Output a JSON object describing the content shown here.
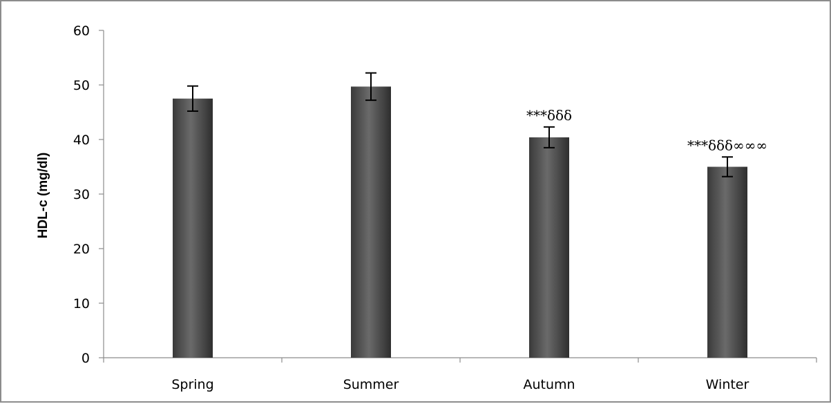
{
  "chart_data": {
    "type": "bar",
    "title": "",
    "xlabel": "",
    "ylabel": "HDL-c (mg/dl)",
    "ylim": [
      0,
      60
    ],
    "yticks": [
      0,
      10,
      20,
      30,
      40,
      50,
      60
    ],
    "categories": [
      "Spring",
      "Summer",
      "Autumn",
      "Winter"
    ],
    "values": [
      47.5,
      49.7,
      40.4,
      35.0
    ],
    "error": [
      2.3,
      2.5,
      1.9,
      1.8
    ],
    "annotations": [
      "",
      "",
      "***δδδ",
      "***δδδ∞∞∞"
    ],
    "bar_color": "#555555",
    "grid": false,
    "legend": "none"
  }
}
